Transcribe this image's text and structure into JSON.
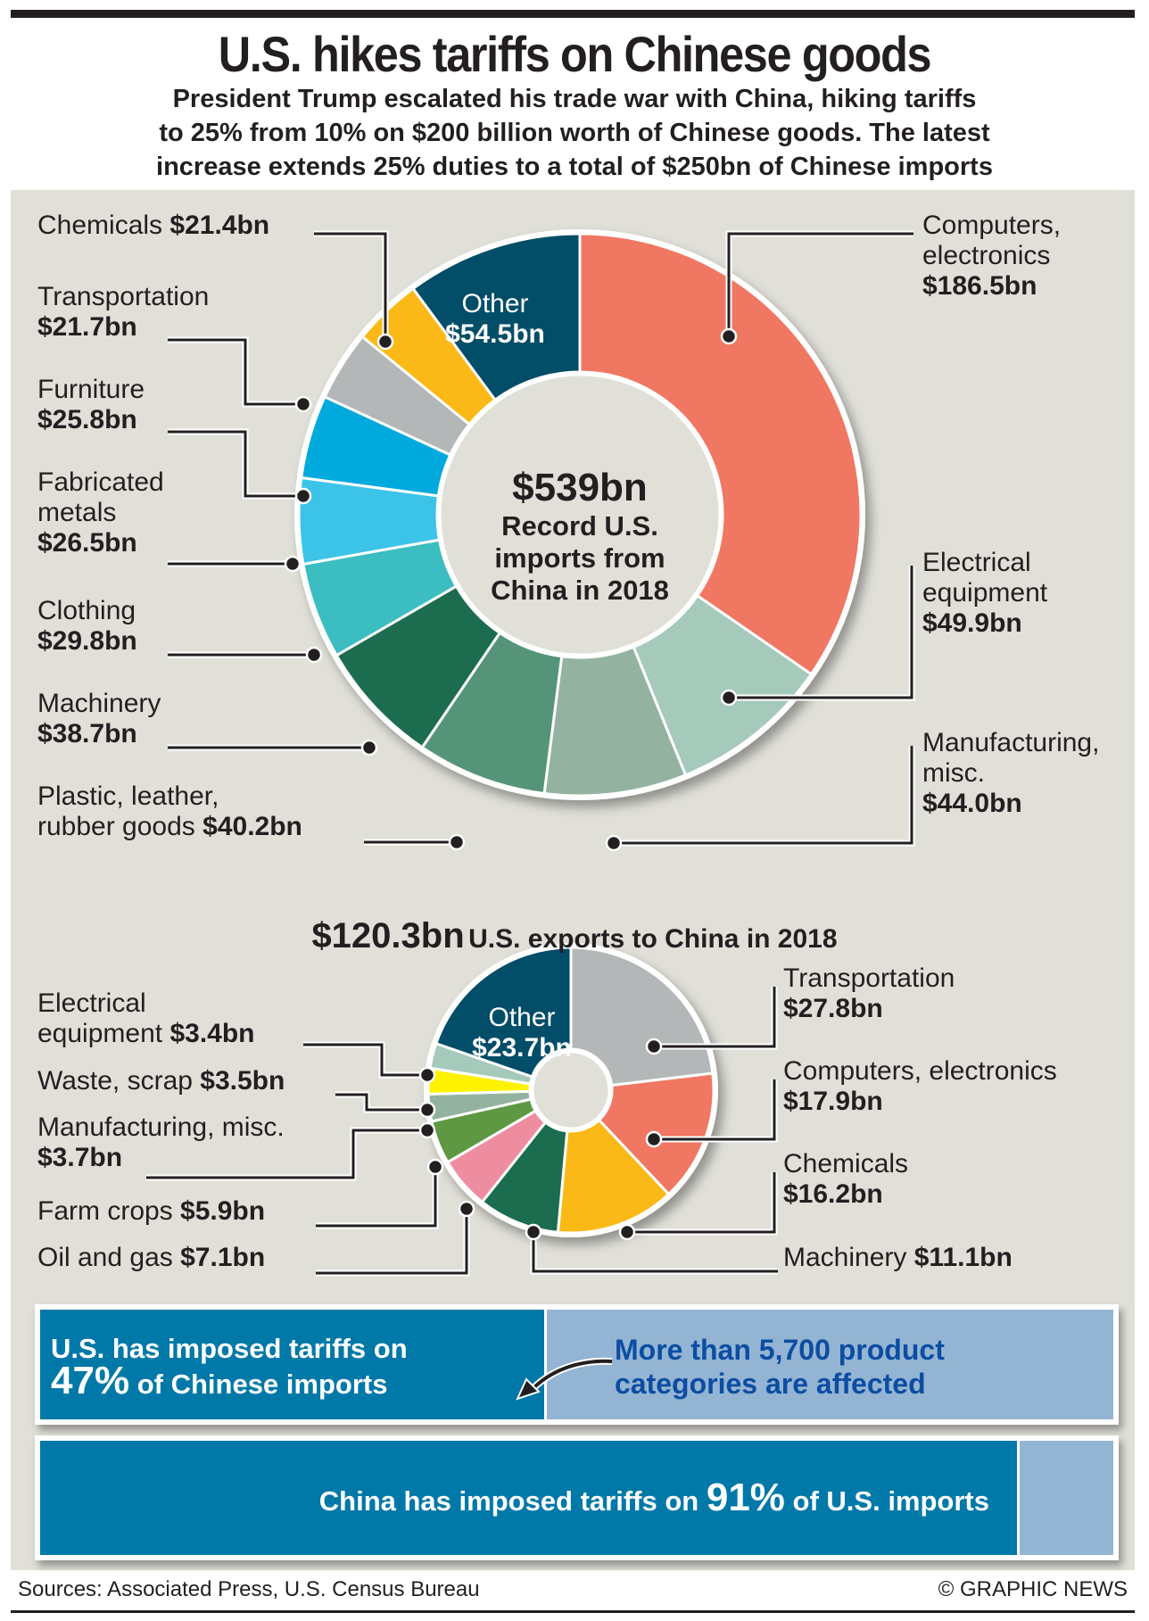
{
  "header": {
    "title": "U.S. hikes tariffs on Chinese goods",
    "subtitle_lines": [
      "President Trump escalated his trade war with China, hiking tariffs",
      "to 25% from 10% on $200 billion worth of Chinese goods. The latest",
      "increase extends 25% duties to a total of $250bn of Chinese imports"
    ]
  },
  "imports": {
    "center_value": "$539bn",
    "center_lines": [
      "Record U.S.",
      "imports from",
      "China in 2018"
    ]
  },
  "exports": {
    "total": "$120.3bn",
    "caption": "U.S. exports to China in 2018"
  },
  "colors": {
    "red": "#f07762",
    "mint": "#a5c9ba",
    "sage": "#93b3a0",
    "mid_green": "#559478",
    "dark_green": "#1c6d4f",
    "teal": "#3bbdc1",
    "light_blue": "#3cc3e8",
    "bright_blue": "#00aadd",
    "gray": "#b3b7b7",
    "yellow": "#fbb918",
    "navy": "#024d68",
    "pink": "#ef8da0",
    "leaf_green": "#5e9842",
    "bright_yellow": "#fff200",
    "panel_bg": "#e0dfd8",
    "bar_blue": "#0078a8",
    "bar_light": "#93b5d3",
    "callout_blue": "#0c4da2"
  },
  "chart_data": [
    {
      "type": "pie",
      "title": "$539bn Record U.S. imports from China in 2018",
      "unit": "$bn",
      "total": 539,
      "donut": true,
      "order": "clockwise from top",
      "slices": [
        {
          "label": "Computers, electronics",
          "value": 186.5,
          "display": "$186.5bn",
          "color": "#f07762"
        },
        {
          "label": "Electrical equipment",
          "value": 49.9,
          "display": "$49.9bn",
          "color": "#a5c9ba"
        },
        {
          "label": "Manufacturing, misc.",
          "value": 44.0,
          "display": "$44.0bn",
          "color": "#93b3a0"
        },
        {
          "label": "Plastic, leather, rubber goods",
          "value": 40.2,
          "display": "$40.2bn",
          "color": "#559478"
        },
        {
          "label": "Machinery",
          "value": 38.7,
          "display": "$38.7bn",
          "color": "#1c6d4f"
        },
        {
          "label": "Clothing",
          "value": 29.8,
          "display": "$29.8bn",
          "color": "#3bbdc1"
        },
        {
          "label": "Fabricated metals",
          "value": 26.5,
          "display": "$26.5bn",
          "color": "#3cc3e8"
        },
        {
          "label": "Furniture",
          "value": 25.8,
          "display": "$25.8bn",
          "color": "#00aadd"
        },
        {
          "label": "Transportation",
          "value": 21.7,
          "display": "$21.7bn",
          "color": "#b3b7b7"
        },
        {
          "label": "Chemicals",
          "value": 21.4,
          "display": "$21.4bn",
          "color": "#fbb918"
        },
        {
          "label": "Other",
          "value": 54.5,
          "display": "$54.5bn",
          "color": "#024d68"
        }
      ]
    },
    {
      "type": "pie",
      "title": "$120.3bn U.S. exports to China in 2018",
      "unit": "$bn",
      "total": 120.3,
      "donut": true,
      "order": "clockwise from top",
      "slices": [
        {
          "label": "Transportation",
          "value": 27.8,
          "display": "$27.8bn",
          "color": "#b3b7b7"
        },
        {
          "label": "Computers, electronics",
          "value": 17.9,
          "display": "$17.9bn",
          "color": "#f07762"
        },
        {
          "label": "Chemicals",
          "value": 16.2,
          "display": "$16.2bn",
          "color": "#fbb918"
        },
        {
          "label": "Machinery",
          "value": 11.1,
          "display": "$11.1bn",
          "color": "#1c6d4f"
        },
        {
          "label": "Oil and gas",
          "value": 7.1,
          "display": "$7.1bn",
          "color": "#ef8da0"
        },
        {
          "label": "Farm crops",
          "value": 5.9,
          "display": "$5.9bn",
          "color": "#5e9842"
        },
        {
          "label": "Manufacturing, misc.",
          "value": 3.7,
          "display": "$3.7bn",
          "color": "#93b3a0"
        },
        {
          "label": "Waste, scrap",
          "value": 3.5,
          "display": "$3.5bn",
          "color": "#fff200"
        },
        {
          "label": "Electrical equipment",
          "value": 3.4,
          "display": "$3.4bn",
          "color": "#a5c9ba"
        },
        {
          "label": "Other",
          "value": 23.7,
          "display": "$23.7bn",
          "color": "#024d68"
        }
      ]
    },
    {
      "type": "bar",
      "title": "Tariff coverage",
      "categories": [
        "U.S. tariffs on Chinese imports",
        "China tariffs on U.S. imports"
      ],
      "values": [
        47,
        91
      ],
      "unit": "%",
      "ylim": [
        0,
        100
      ]
    }
  ],
  "import_labels": {
    "chemicals": {
      "name": "Chemicals",
      "value": "$21.4bn"
    },
    "transportation": {
      "name": "Transportation",
      "value": "$21.7bn"
    },
    "furniture": {
      "name": "Furniture",
      "value": "$25.8bn"
    },
    "fabricated": {
      "name1": "Fabricated",
      "name2": "metals",
      "value": "$26.5bn"
    },
    "clothing": {
      "name": "Clothing",
      "value": "$29.8bn"
    },
    "machinery": {
      "name": "Machinery",
      "value": "$38.7bn"
    },
    "plastic": {
      "name1": "Plastic, leather,",
      "name2": "rubber goods",
      "value": "$40.2bn"
    },
    "computers": {
      "name1": "Computers,",
      "name2": "electronics",
      "value": "$186.5bn"
    },
    "electrical": {
      "name1": "Electrical",
      "name2": "equipment",
      "value": "$49.9bn"
    },
    "manufacturing": {
      "name1": "Manufacturing,",
      "name2": "misc.",
      "value": "$44.0bn"
    },
    "other": {
      "name": "Other",
      "value": "$54.5bn"
    }
  },
  "export_labels": {
    "electrical": {
      "name1": "Electrical",
      "name2": "equipment",
      "value": "$3.4bn"
    },
    "waste": {
      "name": "Waste, scrap",
      "value": "$3.5bn"
    },
    "manufacturing": {
      "name": "Manufacturing, misc.",
      "value": "$3.7bn"
    },
    "farm": {
      "name": "Farm crops",
      "value": "$5.9bn"
    },
    "oil": {
      "name": "Oil and gas",
      "value": "$7.1bn"
    },
    "transportation": {
      "name": "Transportation",
      "value": "$27.8bn"
    },
    "computers": {
      "name": "Computers, electronics",
      "value": "$17.9bn"
    },
    "chemicals": {
      "name": "Chemicals",
      "value": "$16.2bn"
    },
    "machinery": {
      "name": "Machinery",
      "value": "$11.1bn"
    },
    "other": {
      "name": "Other",
      "value": "$23.7bn"
    }
  },
  "tariff_bars": {
    "us": {
      "line1": "U.S. has imposed tariffs on",
      "percent": "47%",
      "line2_rest": "of Chinese imports",
      "share": 0.47
    },
    "callout": {
      "line1": "More than 5,700 product",
      "line2": "categories are affected"
    },
    "china": {
      "prefix": "China has imposed tariffs on",
      "percent": "91%",
      "suffix": "of U.S. imports",
      "share": 0.91
    }
  },
  "footer": {
    "sources": "Sources: Associated Press, U.S. Census Bureau",
    "credit": "© GRAPHIC NEWS"
  }
}
